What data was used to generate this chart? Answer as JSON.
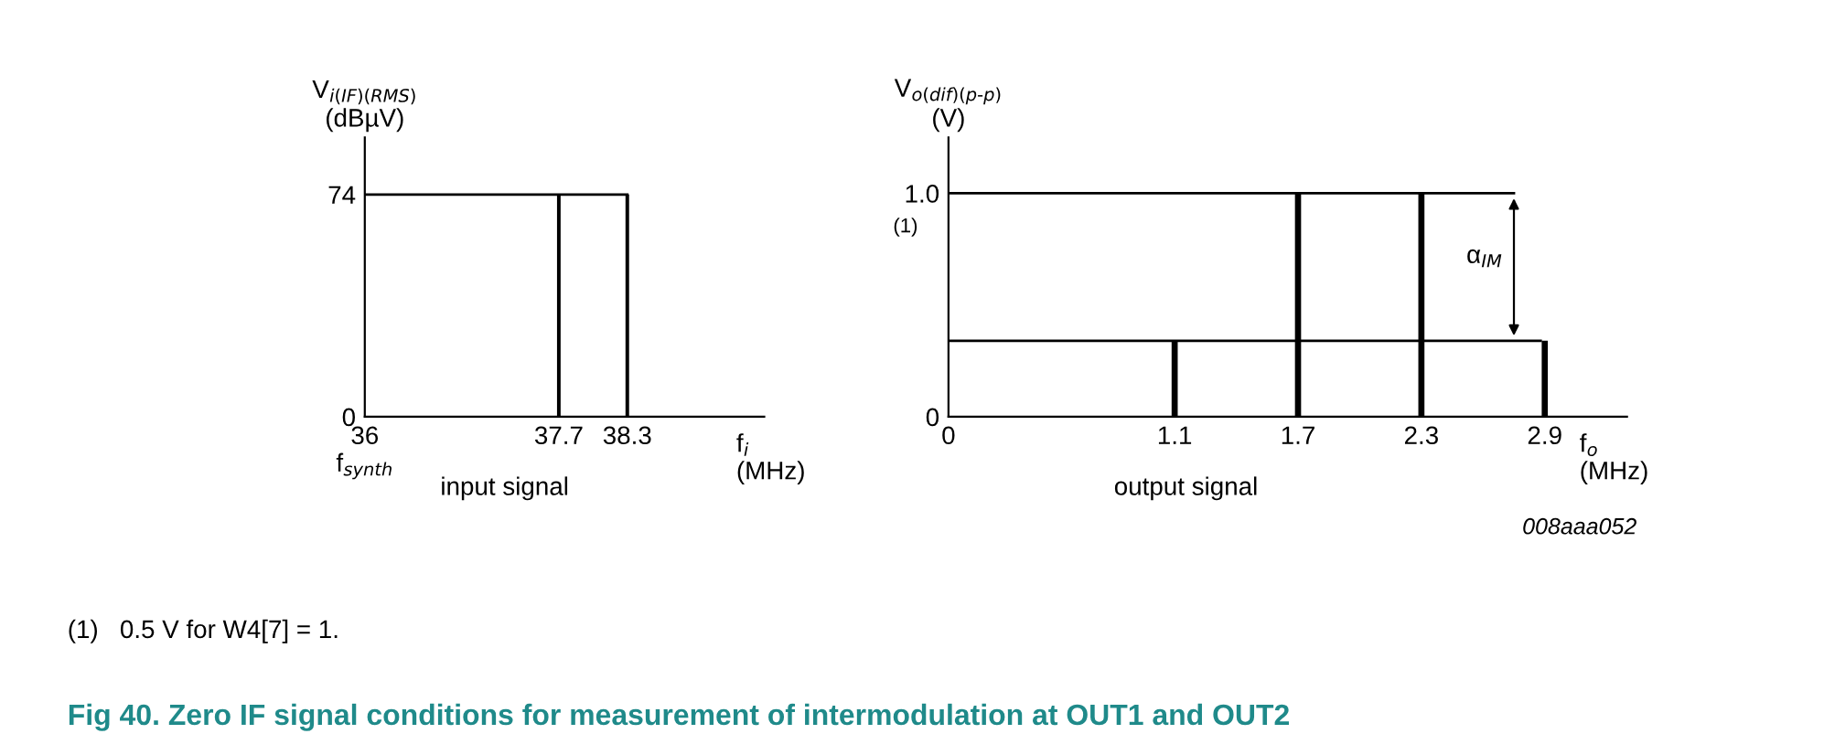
{
  "chart_data": [
    {
      "type": "bar",
      "xlabel": "f$_{i}$\n(MHz)",
      "ylabel": "V$_{i(IF)(RMS)}$\n(dBµV)",
      "x": [
        37.7,
        38.3
      ],
      "series": [
        {
          "color": "#000000",
          "values": [
            74,
            74
          ]
        },
        {
          "type": "line",
          "x": [
            36,
            38.3
          ],
          "color": "#000000",
          "values": [
            74,
            74
          ]
        }
      ],
      "xlim": [
        36,
        39.5
      ],
      "xticks": [
        {
          "value": 36,
          "label": "36\nf$_{synth}$"
        },
        37.7,
        38.3
      ],
      "ylim": [
        0,
        93
      ],
      "yticks": [
        0,
        74
      ],
      "annotations": [
        "input signal"
      ]
    },
    {
      "type": "bar",
      "xlabel": "f$_{o}$\n(MHz)",
      "ylabel": "V$_{o(dif)(p-p)}$\n(V)",
      "x": [
        1.1,
        1.7,
        2.3,
        2.9
      ],
      "series": [
        {
          "color": "#000000",
          "values": [
            0.34,
            1.0,
            1.0,
            0.34
          ]
        },
        {
          "type": "line",
          "x": [
            0,
            2.75
          ],
          "color": "#000000",
          "values": [
            1.0,
            1.0
          ]
        },
        {
          "type": "line",
          "x": [
            0,
            2.88
          ],
          "color": "#000000",
          "values": [
            0.34,
            0.34
          ]
        }
      ],
      "xlim": [
        0,
        3.3
      ],
      "xticks": [
        0,
        1.1,
        1.7,
        2.3,
        2.9
      ],
      "ylim": [
        0,
        1.25
      ],
      "yticks": [
        0,
        {
          "value": 1.0,
          "label": "1.0"
        }
      ],
      "annotations": [
        "output signal",
        "008aaa052",
        "(1)   0.5 V for W4[7] = 1.",
        "Fig 40. Zero IF signal conditions for measurement of intermodulation at OUT1 and OUT2",
        "(1)",
        "α$_{IM}$"
      ]
    }
  ]
}
